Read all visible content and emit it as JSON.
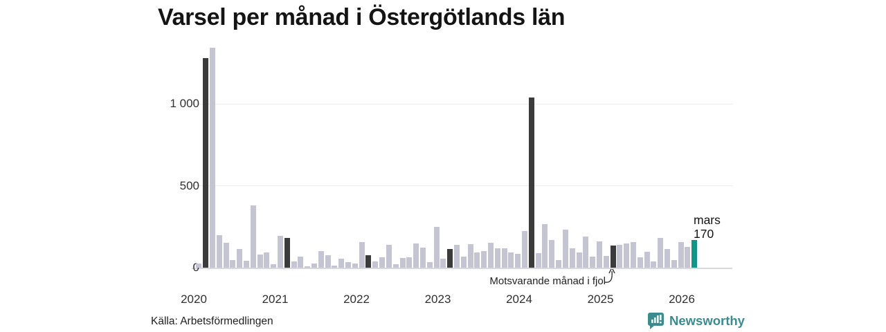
{
  "chart_data": {
    "type": "bar",
    "title": "Varsel per månad i Östergötlands län",
    "xlabel": "",
    "ylabel": "",
    "ylim": [
      0,
      1360
    ],
    "grid": "horizontal",
    "yticks": [
      0,
      500,
      1000
    ],
    "ytick_labels": [
      "0",
      "500",
      "1 000"
    ],
    "year_labels": [
      "2020",
      "2021",
      "2022",
      "2023",
      "2024",
      "2025",
      "2026"
    ],
    "series_name": "Varsel per månad",
    "points": [
      [
        "2020-02",
        27,
        "base"
      ],
      [
        "2020-03",
        1280,
        "fjol"
      ],
      [
        "2020-04",
        1340,
        "base"
      ],
      [
        "2020-05",
        200,
        "base"
      ],
      [
        "2020-06",
        150,
        "base"
      ],
      [
        "2020-07",
        48,
        "base"
      ],
      [
        "2020-08",
        115,
        "base"
      ],
      [
        "2020-09",
        42,
        "base"
      ],
      [
        "2020-10",
        380,
        "base"
      ],
      [
        "2020-11",
        82,
        "base"
      ],
      [
        "2020-12",
        93,
        "base"
      ],
      [
        "2021-01",
        22,
        "base"
      ],
      [
        "2021-02",
        195,
        "base"
      ],
      [
        "2021-03",
        180,
        "fjol"
      ],
      [
        "2021-04",
        39,
        "base"
      ],
      [
        "2021-05",
        67,
        "base"
      ],
      [
        "2021-06",
        8,
        "base"
      ],
      [
        "2021-07",
        25,
        "base"
      ],
      [
        "2021-08",
        100,
        "base"
      ],
      [
        "2021-09",
        75,
        "base"
      ],
      [
        "2021-10",
        11,
        "base"
      ],
      [
        "2021-11",
        55,
        "base"
      ],
      [
        "2021-12",
        35,
        "base"
      ],
      [
        "2022-01",
        25,
        "base"
      ],
      [
        "2022-02",
        155,
        "base"
      ],
      [
        "2022-03",
        75,
        "fjol"
      ],
      [
        "2022-04",
        40,
        "base"
      ],
      [
        "2022-05",
        65,
        "base"
      ],
      [
        "2022-06",
        140,
        "base"
      ],
      [
        "2022-07",
        22,
        "base"
      ],
      [
        "2022-08",
        58,
        "base"
      ],
      [
        "2022-09",
        62,
        "base"
      ],
      [
        "2022-10",
        146,
        "base"
      ],
      [
        "2022-11",
        124,
        "base"
      ],
      [
        "2022-12",
        34,
        "base"
      ],
      [
        "2023-01",
        250,
        "base"
      ],
      [
        "2023-02",
        53,
        "base"
      ],
      [
        "2023-03",
        112,
        "fjol"
      ],
      [
        "2023-04",
        139,
        "base"
      ],
      [
        "2023-05",
        67,
        "base"
      ],
      [
        "2023-06",
        145,
        "base"
      ],
      [
        "2023-07",
        93,
        "base"
      ],
      [
        "2023-08",
        100,
        "base"
      ],
      [
        "2023-09",
        150,
        "base"
      ],
      [
        "2023-10",
        118,
        "base"
      ],
      [
        "2023-11",
        120,
        "base"
      ],
      [
        "2023-12",
        93,
        "base"
      ],
      [
        "2024-01",
        84,
        "base"
      ],
      [
        "2024-02",
        222,
        "base"
      ],
      [
        "2024-03",
        1040,
        "fjol"
      ],
      [
        "2024-04",
        87,
        "base"
      ],
      [
        "2024-05",
        264,
        "base"
      ],
      [
        "2024-06",
        169,
        "base"
      ],
      [
        "2024-07",
        45,
        "base"
      ],
      [
        "2024-08",
        230,
        "base"
      ],
      [
        "2024-09",
        118,
        "base"
      ],
      [
        "2024-10",
        93,
        "base"
      ],
      [
        "2024-11",
        188,
        "base"
      ],
      [
        "2024-12",
        67,
        "base"
      ],
      [
        "2025-01",
        160,
        "base"
      ],
      [
        "2025-02",
        70,
        "base"
      ],
      [
        "2025-03",
        135,
        "fjol"
      ],
      [
        "2025-04",
        138,
        "base"
      ],
      [
        "2025-05",
        149,
        "base"
      ],
      [
        "2025-06",
        157,
        "base"
      ],
      [
        "2025-07",
        62,
        "base"
      ],
      [
        "2025-08",
        95,
        "base"
      ],
      [
        "2025-09",
        40,
        "base"
      ],
      [
        "2025-10",
        180,
        "base"
      ],
      [
        "2025-11",
        115,
        "base"
      ],
      [
        "2025-12",
        48,
        "base"
      ],
      [
        "2026-01",
        156,
        "base"
      ],
      [
        "2026-02",
        125,
        "base"
      ],
      [
        "2026-03",
        170,
        "current"
      ]
    ],
    "colors": {
      "base": "#c5c4d2",
      "fjol": "#3b3b3b",
      "current": "#0e9788"
    },
    "current_point_label": {
      "month": "mars",
      "value": "170"
    },
    "annotation": {
      "text": "Motsvarande månad i fjol",
      "target_month": "2025-03"
    }
  },
  "footer": {
    "source": "Källa: Arbetsförmedlingen",
    "brand": "Newsworthy",
    "brand_color": "#3a8c8e"
  }
}
